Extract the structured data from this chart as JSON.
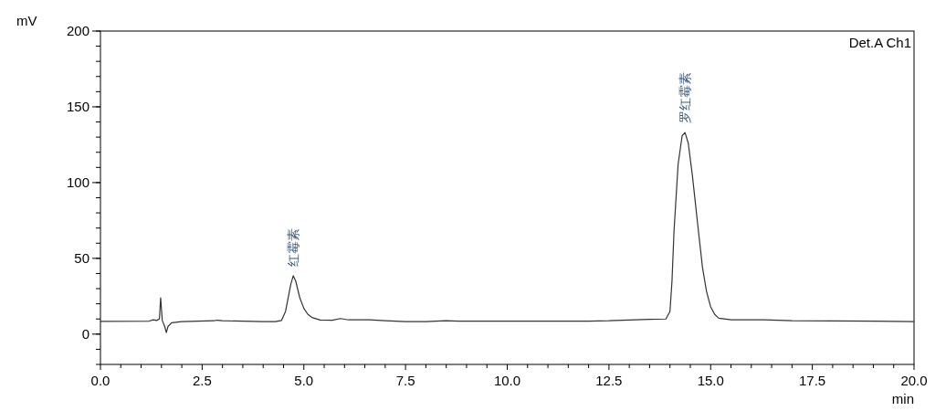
{
  "chart_data": {
    "type": "line",
    "xlabel": "min",
    "ylabel": "mV",
    "xlim": [
      0,
      20
    ],
    "ylim": [
      -20,
      200
    ],
    "xticks": [
      {
        "value": 0,
        "label": "0.0"
      },
      {
        "value": 2.5,
        "label": "2.5"
      },
      {
        "value": 5,
        "label": "5.0"
      },
      {
        "value": 7.5,
        "label": "7.5"
      },
      {
        "value": 10,
        "label": "10.0"
      },
      {
        "value": 12.5,
        "label": "12.5"
      },
      {
        "value": 15,
        "label": "15.0"
      },
      {
        "value": 17.5,
        "label": "17.5"
      },
      {
        "value": 20,
        "label": "20.0"
      }
    ],
    "yticks": [
      0,
      50,
      100,
      150,
      200
    ],
    "grid": false,
    "marker": "none",
    "line_style": "solid",
    "annotations": [
      "Det.A Ch1",
      {
        "text": "红霉素",
        "x": 4.74,
        "y": 38.5
      },
      {
        "text": "罗红霉素",
        "x": 14.37,
        "y": 133
      }
    ],
    "series": [
      {
        "color": "#333333",
        "x": [
          0,
          1.2,
          1.3,
          1.38,
          1.45,
          1.48,
          1.52,
          1.58,
          1.62,
          1.66,
          1.75,
          2.0,
          2.8,
          2.85,
          3.0,
          3.5,
          4.0,
          4.3,
          4.45,
          4.55,
          4.6,
          4.68,
          4.74,
          4.8,
          4.9,
          5.0,
          5.1,
          5.2,
          5.4,
          5.7,
          5.9,
          6.1,
          6.6,
          7.0,
          7.5,
          8.0,
          8.5,
          8.8,
          10,
          12,
          12.5,
          13.5,
          13.9,
          14.0,
          14.05,
          14.1,
          14.2,
          14.3,
          14.37,
          14.45,
          14.55,
          14.7,
          14.8,
          14.9,
          15.0,
          15.1,
          15.2,
          15.5,
          16.3,
          17,
          18,
          19,
          20
        ],
        "values": [
          8.4,
          8.6,
          9.5,
          9.0,
          10,
          24,
          9,
          5,
          1,
          5,
          7.5,
          8.2,
          8.8,
          9.2,
          8.8,
          8.5,
          8.2,
          8.2,
          9,
          15,
          22,
          33,
          38.5,
          35,
          24,
          17,
          13,
          11,
          9.3,
          9.2,
          10.3,
          9.4,
          9.4,
          8.8,
          8.3,
          8.3,
          8.9,
          8.5,
          8.5,
          8.6,
          8.8,
          9.8,
          10,
          15,
          35,
          68,
          112,
          131,
          133,
          126,
          105,
          68,
          44,
          28,
          18,
          13,
          10.5,
          9.5,
          9.5,
          8.9,
          8.7,
          8.5,
          8.2
        ]
      }
    ]
  }
}
